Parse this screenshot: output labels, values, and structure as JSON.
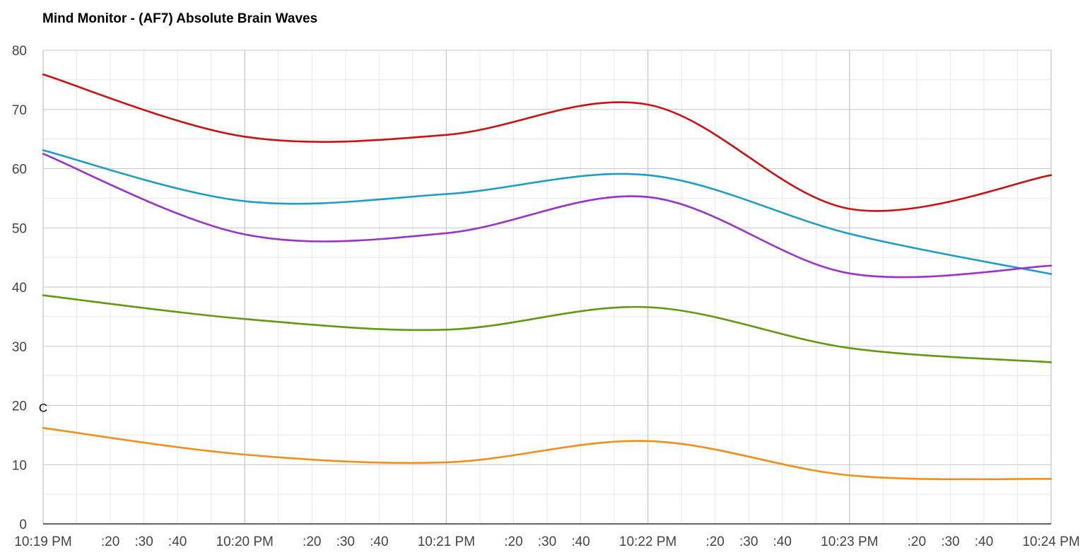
{
  "chart_data": {
    "type": "line",
    "title": "Mind Monitor - (AF7) Absolute Brain Waves",
    "xlabel": "",
    "ylabel": "",
    "ylim": [
      0,
      80
    ],
    "y_ticks": [
      0,
      10,
      20,
      30,
      40,
      50,
      60,
      70,
      80
    ],
    "x_range_seconds": [
      0,
      300
    ],
    "x_ticks": [
      {
        "t": 0,
        "label": "10:19 PM",
        "major": true
      },
      {
        "t": 20,
        "label": ":20",
        "major": false
      },
      {
        "t": 30,
        "label": ":30",
        "major": false
      },
      {
        "t": 40,
        "label": ":40",
        "major": false
      },
      {
        "t": 60,
        "label": "10:20 PM",
        "major": true
      },
      {
        "t": 80,
        "label": ":20",
        "major": false
      },
      {
        "t": 90,
        "label": ":30",
        "major": false
      },
      {
        "t": 100,
        "label": ":40",
        "major": false
      },
      {
        "t": 120,
        "label": "10:21 PM",
        "major": true
      },
      {
        "t": 140,
        "label": ":20",
        "major": false
      },
      {
        "t": 150,
        "label": ":30",
        "major": false
      },
      {
        "t": 160,
        "label": ":40",
        "major": false
      },
      {
        "t": 180,
        "label": "10:22 PM",
        "major": true
      },
      {
        "t": 200,
        "label": ":20",
        "major": false
      },
      {
        "t": 210,
        "label": ":30",
        "major": false
      },
      {
        "t": 220,
        "label": ":40",
        "major": false
      },
      {
        "t": 240,
        "label": "10:23 PM",
        "major": true
      },
      {
        "t": 260,
        "label": ":20",
        "major": false
      },
      {
        "t": 270,
        "label": ":30",
        "major": false
      },
      {
        "t": 280,
        "label": ":40",
        "major": false
      },
      {
        "t": 300,
        "label": "10:24 PM",
        "major": true
      }
    ],
    "grid": true,
    "legend": "none",
    "series": [
      {
        "color": "#cc1111",
        "x": [
          0,
          60,
          120,
          180,
          240,
          300
        ],
        "values": [
          75.9,
          65.4,
          65.7,
          70.8,
          53.2,
          58.9
        ]
      },
      {
        "color": "#1a9dc9",
        "x": [
          0,
          60,
          120,
          180,
          240,
          300
        ],
        "values": [
          63.1,
          54.5,
          55.7,
          58.9,
          49.0,
          42.2
        ]
      },
      {
        "color": "#9933cc",
        "x": [
          0,
          60,
          120,
          180,
          240,
          300
        ],
        "values": [
          62.5,
          48.9,
          49.1,
          55.2,
          42.3,
          43.6
        ]
      },
      {
        "color": "#5f9a10",
        "x": [
          0,
          60,
          120,
          180,
          240,
          300
        ],
        "values": [
          38.6,
          34.6,
          32.8,
          36.6,
          29.7,
          27.3
        ]
      },
      {
        "color": "#f0901a",
        "x": [
          0,
          60,
          120,
          180,
          240,
          300
        ],
        "values": [
          16.2,
          11.7,
          10.4,
          14.0,
          8.2,
          7.6
        ]
      }
    ],
    "annotations": [
      {
        "label": "C",
        "t": 0,
        "y": 20
      }
    ],
    "colors": {
      "major_grid": "#c8c8c8",
      "minor_grid": "#e8e8e8",
      "axis": "#333333",
      "tick_text": "#444444"
    }
  }
}
